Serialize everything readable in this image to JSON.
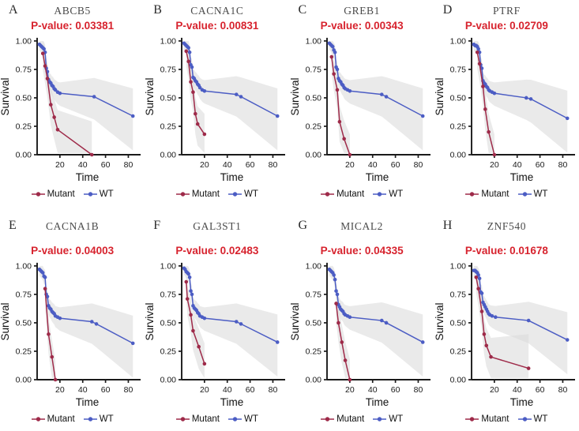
{
  "legend": {
    "mutant_label": "Mutant",
    "wt_label": "WT"
  },
  "colors": {
    "mutant": "#9E2A49",
    "wt": "#4C5DC4",
    "pvalue_red": "#D7232E",
    "ci_fill": "#D9D9D9",
    "axis": "#1A1A1A",
    "title_gray": "#4A4A4A"
  },
  "chart_data": [
    {
      "type": "line",
      "panel": "A",
      "title": "ABCB5",
      "pvalue_label": "P-value: 0.03381",
      "xlabel": "Time",
      "ylabel": "Survival",
      "xlim": [
        0,
        88
      ],
      "ylim": [
        0,
        1.02
      ],
      "xticks": [
        20,
        40,
        60,
        80
      ],
      "yticks": [
        0,
        0.25,
        0.5,
        0.75,
        1
      ],
      "ytick_labels": [
        "0.00",
        "0.25",
        "0.50",
        "0.75",
        "1.00"
      ],
      "series": [
        {
          "name": "Mutant",
          "t": [
            5,
            7,
            9,
            12,
            15,
            18,
            48
          ],
          "s": [
            0.89,
            0.78,
            0.67,
            0.44,
            0.33,
            0.22,
            0.0
          ]
        },
        {
          "name": "WT",
          "t": [
            2,
            3,
            4,
            5,
            6,
            7,
            8,
            9,
            10,
            11,
            12,
            13,
            14,
            15,
            16,
            18,
            20,
            50,
            84
          ],
          "s": [
            0.97,
            0.96,
            0.95,
            0.94,
            0.93,
            0.9,
            0.76,
            0.73,
            0.66,
            0.64,
            0.63,
            0.61,
            0.6,
            0.58,
            0.57,
            0.55,
            0.54,
            0.51,
            0.34
          ]
        }
      ]
    },
    {
      "type": "line",
      "panel": "B",
      "title": "CACNA1C",
      "pvalue_label": "P-value: 0.00831",
      "xlabel": "Time",
      "ylabel": "Survival",
      "xlim": [
        0,
        88
      ],
      "ylim": [
        0,
        1.02
      ],
      "xticks": [
        20,
        40,
        60,
        80
      ],
      "yticks": [
        0,
        0.25,
        0.5,
        0.75,
        1
      ],
      "ytick_labels": [
        "0.00",
        "0.25",
        "0.50",
        "0.75",
        "1.00"
      ],
      "series": [
        {
          "name": "Mutant",
          "t": [
            4,
            6,
            8,
            10,
            12,
            14,
            20
          ],
          "s": [
            0.91,
            0.82,
            0.64,
            0.55,
            0.36,
            0.27,
            0.18
          ]
        },
        {
          "name": "WT",
          "t": [
            2,
            3,
            4,
            5,
            6,
            7,
            8,
            9,
            10,
            11,
            12,
            13,
            14,
            15,
            16,
            18,
            20,
            48,
            52,
            84
          ],
          "s": [
            0.98,
            0.97,
            0.96,
            0.95,
            0.94,
            0.9,
            0.79,
            0.77,
            0.68,
            0.67,
            0.65,
            0.64,
            0.62,
            0.61,
            0.59,
            0.57,
            0.56,
            0.53,
            0.51,
            0.34
          ]
        }
      ]
    },
    {
      "type": "line",
      "panel": "C",
      "title": "GREB1",
      "pvalue_label": "P-value: 0.00343",
      "xlabel": "Time",
      "ylabel": "Survival",
      "xlim": [
        0,
        88
      ],
      "ylim": [
        0,
        1.02
      ],
      "xticks": [
        20,
        40,
        60,
        80
      ],
      "yticks": [
        0,
        0.25,
        0.5,
        0.75,
        1
      ],
      "ytick_labels": [
        "0.00",
        "0.25",
        "0.50",
        "0.75",
        "1.00"
      ],
      "series": [
        {
          "name": "Mutant",
          "t": [
            4,
            6,
            9,
            11,
            15,
            20
          ],
          "s": [
            0.86,
            0.71,
            0.57,
            0.29,
            0.14,
            0.0
          ]
        },
        {
          "name": "WT",
          "t": [
            2,
            3,
            4,
            5,
            6,
            7,
            8,
            9,
            10,
            11,
            12,
            13,
            14,
            15,
            16,
            18,
            20,
            48,
            52,
            84
          ],
          "s": [
            0.98,
            0.97,
            0.96,
            0.95,
            0.92,
            0.9,
            0.77,
            0.75,
            0.67,
            0.65,
            0.64,
            0.62,
            0.61,
            0.59,
            0.58,
            0.57,
            0.56,
            0.53,
            0.51,
            0.34
          ]
        }
      ]
    },
    {
      "type": "line",
      "panel": "D",
      "title": "PTRF",
      "pvalue_label": "P-value: 0.02709",
      "xlabel": "Time",
      "ylabel": "Survival",
      "xlim": [
        0,
        88
      ],
      "ylim": [
        0,
        1.02
      ],
      "xticks": [
        20,
        40,
        60,
        80
      ],
      "yticks": [
        0,
        0.25,
        0.5,
        0.75,
        1
      ],
      "ytick_labels": [
        "0.00",
        "0.25",
        "0.50",
        "0.75",
        "1.00"
      ],
      "series": [
        {
          "name": "Mutant",
          "t": [
            5,
            7,
            10,
            12,
            15,
            20
          ],
          "s": [
            0.9,
            0.8,
            0.6,
            0.4,
            0.2,
            0.0
          ]
        },
        {
          "name": "WT",
          "t": [
            2,
            3,
            4,
            5,
            6,
            7,
            8,
            9,
            10,
            11,
            12,
            13,
            14,
            15,
            16,
            18,
            20,
            48,
            52,
            84
          ],
          "s": [
            0.97,
            0.96,
            0.96,
            0.95,
            0.93,
            0.9,
            0.79,
            0.76,
            0.65,
            0.63,
            0.62,
            0.6,
            0.59,
            0.57,
            0.56,
            0.55,
            0.54,
            0.5,
            0.49,
            0.32
          ]
        }
      ]
    },
    {
      "type": "line",
      "panel": "E",
      "title": "CACNA1B",
      "pvalue_label": "P-value: 0.04003",
      "xlabel": "Time",
      "ylabel": "Survival",
      "xlim": [
        0,
        88
      ],
      "ylim": [
        0,
        1.02
      ],
      "xticks": [
        20,
        40,
        60,
        80
      ],
      "yticks": [
        0,
        0.25,
        0.5,
        0.75,
        1
      ],
      "ytick_labels": [
        "0.00",
        "0.25",
        "0.50",
        "0.75",
        "1.00"
      ],
      "series": [
        {
          "name": "Mutant",
          "t": [
            7,
            10,
            13,
            16
          ],
          "s": [
            0.8,
            0.4,
            0.2,
            0.0
          ]
        },
        {
          "name": "WT",
          "t": [
            2,
            3,
            4,
            5,
            6,
            7,
            8,
            9,
            10,
            11,
            12,
            13,
            14,
            15,
            16,
            18,
            20,
            48,
            52,
            84
          ],
          "s": [
            0.97,
            0.96,
            0.95,
            0.94,
            0.91,
            0.9,
            0.75,
            0.73,
            0.65,
            0.63,
            0.62,
            0.6,
            0.59,
            0.58,
            0.56,
            0.55,
            0.54,
            0.51,
            0.49,
            0.32
          ]
        }
      ]
    },
    {
      "type": "line",
      "panel": "F",
      "title": "GAL3ST1",
      "pvalue_label": "P-value: 0.02483",
      "xlabel": "Time",
      "ylabel": "Survival",
      "xlim": [
        0,
        88
      ],
      "ylim": [
        0,
        1.02
      ],
      "xticks": [
        20,
        40,
        60,
        80
      ],
      "yticks": [
        0,
        0.25,
        0.5,
        0.75,
        1
      ],
      "ytick_labels": [
        "0.00",
        "0.25",
        "0.50",
        "0.75",
        "1.00"
      ],
      "series": [
        {
          "name": "Mutant",
          "t": [
            4,
            5,
            8,
            10,
            15,
            20
          ],
          "s": [
            0.86,
            0.71,
            0.57,
            0.43,
            0.29,
            0.14
          ]
        },
        {
          "name": "WT",
          "t": [
            2,
            3,
            4,
            5,
            6,
            7,
            8,
            9,
            10,
            11,
            12,
            13,
            14,
            15,
            16,
            18,
            20,
            48,
            52,
            84
          ],
          "s": [
            0.98,
            0.97,
            0.95,
            0.94,
            0.93,
            0.9,
            0.78,
            0.75,
            0.65,
            0.63,
            0.62,
            0.61,
            0.59,
            0.58,
            0.56,
            0.55,
            0.54,
            0.51,
            0.49,
            0.33
          ]
        }
      ]
    },
    {
      "type": "line",
      "panel": "G",
      "title": "MICAL2",
      "pvalue_label": "P-value: 0.04335",
      "xlabel": "Time",
      "ylabel": "Survival",
      "xlim": [
        0,
        88
      ],
      "ylim": [
        0,
        1.02
      ],
      "xticks": [
        20,
        40,
        60,
        80
      ],
      "yticks": [
        0,
        0.25,
        0.5,
        0.75,
        1
      ],
      "ytick_labels": [
        "0.00",
        "0.25",
        "0.50",
        "0.75",
        "1.00"
      ],
      "series": [
        {
          "name": "Mutant",
          "t": [
            8,
            10,
            13,
            16,
            20
          ],
          "s": [
            0.67,
            0.5,
            0.33,
            0.17,
            0.0
          ]
        },
        {
          "name": "WT",
          "t": [
            2,
            3,
            4,
            5,
            6,
            7,
            8,
            9,
            10,
            11,
            12,
            13,
            14,
            15,
            16,
            18,
            20,
            48,
            52,
            84
          ],
          "s": [
            0.97,
            0.96,
            0.95,
            0.94,
            0.92,
            0.88,
            0.78,
            0.75,
            0.66,
            0.64,
            0.62,
            0.61,
            0.6,
            0.58,
            0.57,
            0.56,
            0.55,
            0.52,
            0.5,
            0.33
          ]
        }
      ]
    },
    {
      "type": "line",
      "panel": "H",
      "title": "ZNF540",
      "pvalue_label": "P-value: 0.01678",
      "xlabel": "Time",
      "ylabel": "Survival",
      "xlim": [
        0,
        88
      ],
      "ylim": [
        0,
        1.02
      ],
      "xticks": [
        20,
        40,
        60,
        80
      ],
      "yticks": [
        0,
        0.25,
        0.5,
        0.75,
        1
      ],
      "ytick_labels": [
        "0.00",
        "0.25",
        "0.50",
        "0.75",
        "1.00"
      ],
      "series": [
        {
          "name": "Mutant",
          "t": [
            4,
            6,
            9,
            11,
            13,
            17,
            50
          ],
          "s": [
            0.9,
            0.8,
            0.6,
            0.4,
            0.3,
            0.2,
            0.1
          ]
        },
        {
          "name": "WT",
          "t": [
            2,
            3,
            4,
            5,
            6,
            7,
            8,
            9,
            10,
            11,
            12,
            13,
            14,
            15,
            16,
            18,
            21,
            50,
            84
          ],
          "s": [
            0.96,
            0.96,
            0.95,
            0.94,
            0.92,
            0.89,
            0.77,
            0.76,
            0.68,
            0.66,
            0.64,
            0.62,
            0.6,
            0.58,
            0.57,
            0.56,
            0.55,
            0.52,
            0.35
          ]
        }
      ]
    }
  ]
}
